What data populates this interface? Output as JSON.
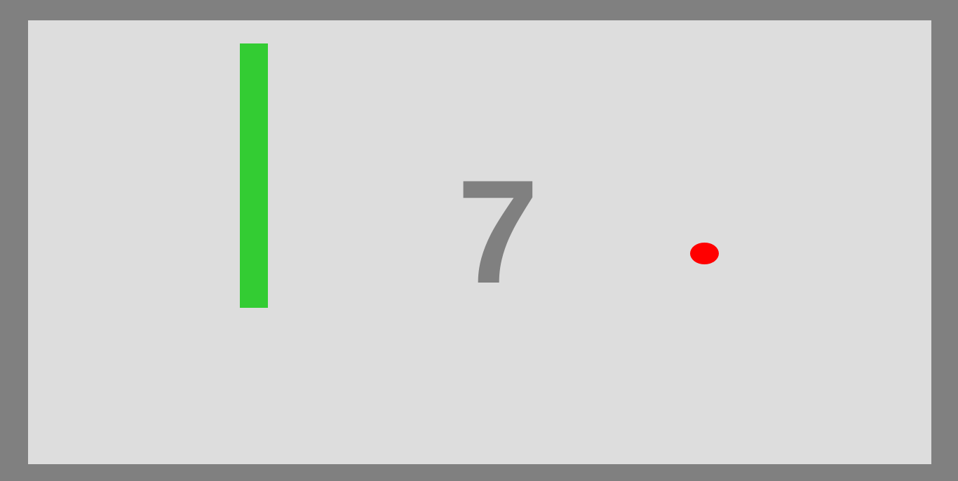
{
  "game": {
    "score": "7",
    "colors": {
      "frame": "#808080",
      "court": "#dddddd",
      "paddle": "#33cc33",
      "ball": "#ff0000",
      "score": "#808080"
    }
  }
}
